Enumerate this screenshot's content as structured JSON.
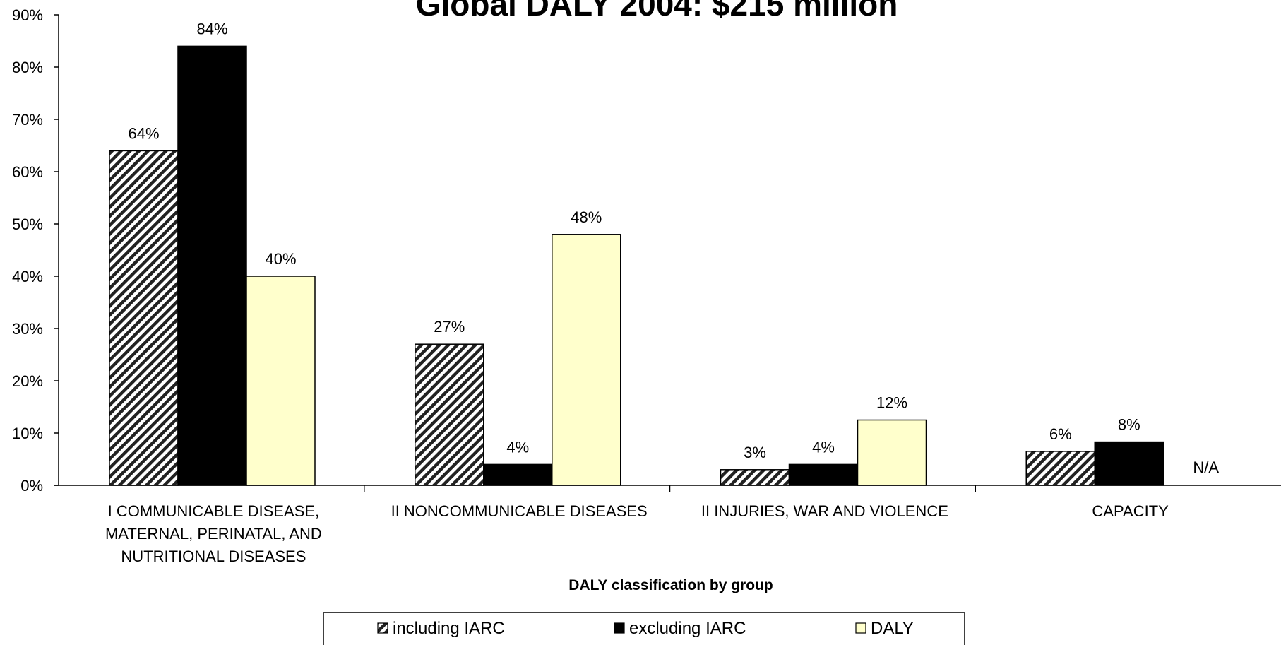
{
  "chart_data": {
    "type": "bar",
    "title": "Global DALY 2004:  $215 million",
    "xlabel": "DALY classification by group",
    "ylabel": "",
    "ylim": [
      0,
      0.9
    ],
    "yticks": [
      "0%",
      "10%",
      "20%",
      "30%",
      "40%",
      "50%",
      "60%",
      "70%",
      "80%",
      "90%"
    ],
    "categories": [
      [
        "I COMMUNICABLE DISEASE,",
        "MATERNAL, PERINATAL, AND",
        "NUTRITIONAL DISEASES"
      ],
      [
        "II NONCOMMUNICABLE DISEASES"
      ],
      [
        "II INJURIES, WAR AND VIOLENCE"
      ],
      [
        "CAPACITY"
      ]
    ],
    "series": [
      {
        "name": "including IARC",
        "values": [
          0.64,
          0.27,
          0.03,
          0.065
        ],
        "labels": [
          "64%",
          "27%",
          "3%",
          "6%"
        ],
        "fill": "hatch"
      },
      {
        "name": "excluding IARC",
        "values": [
          0.84,
          0.04,
          0.04,
          0.083
        ],
        "labels": [
          "84%",
          "4%",
          "4%",
          "8%"
        ],
        "fill": "#000000"
      },
      {
        "name": "DALY",
        "values": [
          0.4,
          0.48,
          0.125,
          null
        ],
        "labels": [
          "40%",
          "48%",
          "12%",
          "N/A"
        ],
        "fill": "#FFFFCC"
      }
    ],
    "grid": false,
    "legend_position": "bottom"
  }
}
